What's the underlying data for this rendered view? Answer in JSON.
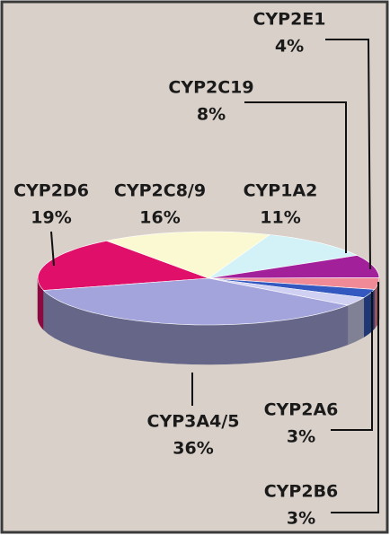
{
  "chart_data": {
    "type": "pie",
    "categories": [
      "CYP2D6",
      "CYP2C8/9",
      "CYP1A2",
      "CYP2C19",
      "CYP2E1",
      "CYP2A6",
      "CYP2B6",
      "CYP3A4/5"
    ],
    "values": [
      19,
      16,
      11,
      8,
      4,
      3,
      3,
      36
    ],
    "value_labels": [
      "19%",
      "16%",
      "11%",
      "8%",
      "4%",
      "3%",
      "3%",
      "36%"
    ],
    "colors": [
      "#e0106a",
      "#fbf9d2",
      "#d2f2f8",
      "#a3209b",
      "#f08a96",
      "#3358bf",
      "#d0d0f2",
      "#a4a4dc"
    ]
  }
}
